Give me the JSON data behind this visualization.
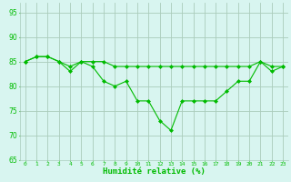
{
  "x": [
    0,
    1,
    2,
    3,
    4,
    5,
    6,
    7,
    8,
    9,
    10,
    11,
    12,
    13,
    14,
    15,
    16,
    17,
    18,
    19,
    20,
    21,
    22,
    23
  ],
  "series1": [
    85,
    86,
    86,
    85,
    84,
    85,
    85,
    85,
    84,
    84,
    84,
    84,
    84,
    84,
    84,
    84,
    84,
    84,
    84,
    84,
    84,
    85,
    84,
    84
  ],
  "series2": [
    85,
    86,
    86,
    85,
    83,
    85,
    84,
    81,
    80,
    81,
    77,
    77,
    73,
    71,
    77,
    77,
    77,
    77,
    79,
    81,
    81,
    85,
    83,
    84
  ],
  "line_color": "#00bb00",
  "marker": "D",
  "marker_size": 2,
  "xlim": [
    -0.5,
    23.5
  ],
  "ylim": [
    65,
    97
  ],
  "yticks": [
    65,
    70,
    75,
    80,
    85,
    90,
    95
  ],
  "xtick_labels": [
    "0",
    "1",
    "2",
    "3",
    "4",
    "5",
    "6",
    "7",
    "8",
    "9",
    "10",
    "11",
    "12",
    "13",
    "14",
    "15",
    "16",
    "17",
    "18",
    "19",
    "20",
    "21",
    "22",
    "23"
  ],
  "xlabel": "Humidité relative (%)",
  "bg_color": "#d8f5f0",
  "grid_color": "#aaccbb",
  "title": ""
}
